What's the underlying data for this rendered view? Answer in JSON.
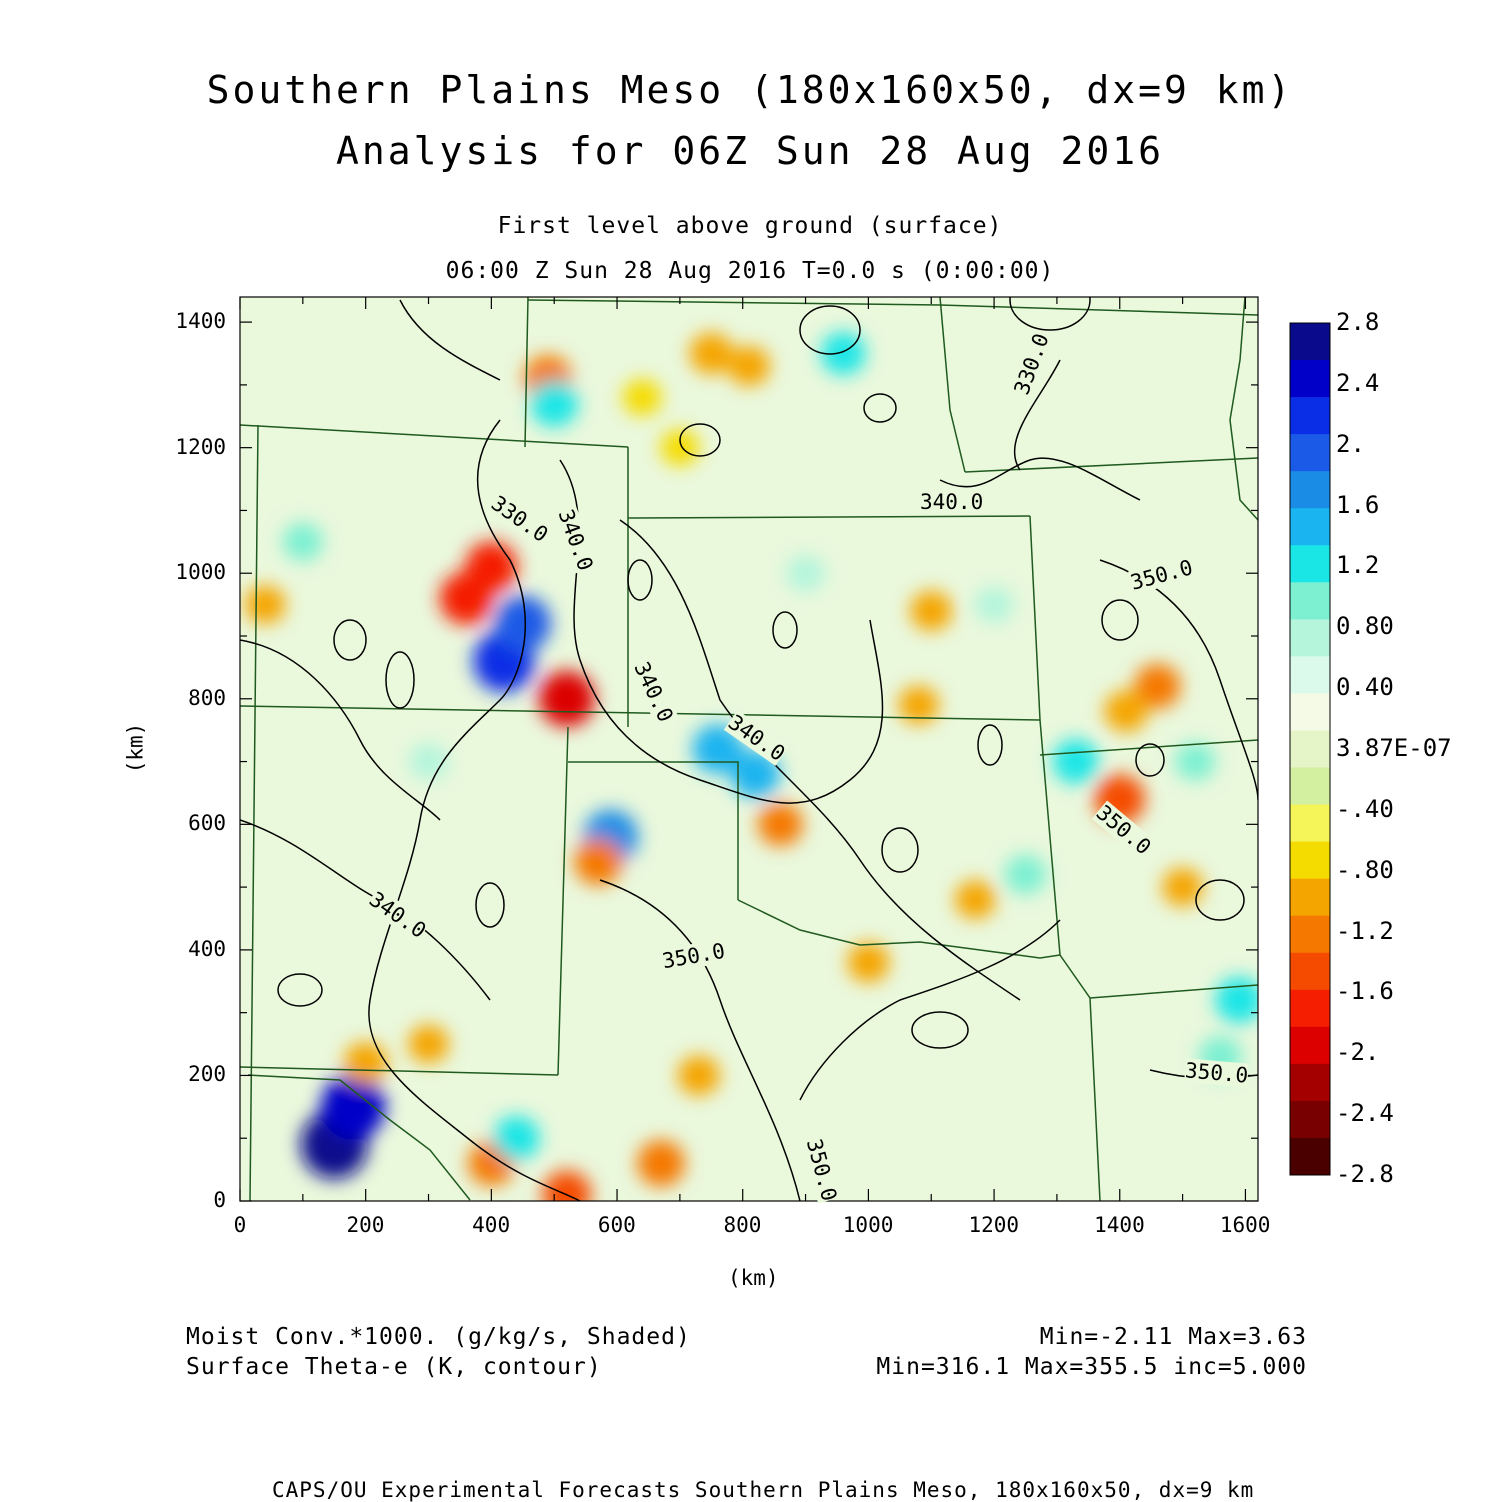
{
  "header": {
    "title_line1": "Southern Plains Meso (180x160x50, dx=9 km)",
    "title_line2": "Analysis for 06Z Sun 28 Aug 2016",
    "level": "First level above ground (surface)",
    "time": "06:00 Z Sun 28 Aug 2016    T=0.0 s (0:00:00)"
  },
  "chart_data": {
    "type": "heatmap",
    "xlabel": "(km)",
    "ylabel": "(km)",
    "xlim": [
      0,
      1620
    ],
    "ylim": [
      0,
      1440
    ],
    "x_ticks": [
      "0",
      "200",
      "400",
      "600",
      "800",
      "1000",
      "1200",
      "1400",
      "1600"
    ],
    "y_ticks": [
      "0",
      "200",
      "400",
      "600",
      "800",
      "1000",
      "1200",
      "1400"
    ],
    "colorbar": {
      "labels": [
        "2.8",
        "2.4",
        "2.",
        "1.6",
        "1.2",
        "0.80",
        "0.40",
        "3.87E-07",
        "-.40",
        "-.80",
        "-1.2",
        "-1.6",
        "-2.",
        "-2.4",
        "-2.8"
      ],
      "colors": [
        "#0a0a8c",
        "#0000c8",
        "#0a2ee6",
        "#1a5ae6",
        "#1a8ce6",
        "#1ab4f0",
        "#1ae6e6",
        "#7df0d2",
        "#b4f5dc",
        "#dcfaeb",
        "#f5fae6",
        "#e6f5c8",
        "#d2f0a0",
        "#f5f55a",
        "#f5dc00",
        "#f5a500",
        "#f57800",
        "#f54b00",
        "#f51e00",
        "#dc0000",
        "#a50000",
        "#780000",
        "#4b0000"
      ]
    },
    "contour_labels": [
      "330.0",
      "340.0",
      "350.0"
    ],
    "shaded_field": {
      "label": "Moist Conv.*1000. (g/kg/s, Shaded)",
      "stats": "Min=-2.11 Max=3.63"
    },
    "contour_field": {
      "label": "Surface Theta-e (K, contour)",
      "stats": "Min=316.1 Max=355.5 inc=5.000"
    },
    "features": [
      {
        "x": 150,
        "y": 90,
        "v": 2.8
      },
      {
        "x": 180,
        "y": 150,
        "v": 2.6
      },
      {
        "x": 420,
        "y": 860,
        "v": 2.4
      },
      {
        "x": 450,
        "y": 920,
        "v": 2.0
      },
      {
        "x": 520,
        "y": 800,
        "v": -2.0
      },
      {
        "x": 360,
        "y": 960,
        "v": -1.8
      },
      {
        "x": 400,
        "y": 1010,
        "v": -1.7
      },
      {
        "x": 590,
        "y": 580,
        "v": 1.9
      },
      {
        "x": 570,
        "y": 540,
        "v": -1.4
      },
      {
        "x": 760,
        "y": 720,
        "v": 1.6
      },
      {
        "x": 820,
        "y": 680,
        "v": 1.5
      },
      {
        "x": 860,
        "y": 600,
        "v": -1.2
      },
      {
        "x": 1400,
        "y": 640,
        "v": -1.6
      },
      {
        "x": 1460,
        "y": 820,
        "v": -1.3
      },
      {
        "x": 1410,
        "y": 780,
        "v": -1.1
      },
      {
        "x": 1330,
        "y": 700,
        "v": 1.3
      },
      {
        "x": 1590,
        "y": 320,
        "v": 1.4
      },
      {
        "x": 1560,
        "y": 230,
        "v": 1.1
      },
      {
        "x": 520,
        "y": 10,
        "v": -1.5
      },
      {
        "x": 400,
        "y": 60,
        "v": -1.3
      },
      {
        "x": 670,
        "y": 60,
        "v": -1.4
      },
      {
        "x": 730,
        "y": 200,
        "v": -1.0
      },
      {
        "x": 440,
        "y": 100,
        "v": 1.3
      },
      {
        "x": 1000,
        "y": 380,
        "v": -1.0
      },
      {
        "x": 810,
        "y": 1330,
        "v": -1.0
      },
      {
        "x": 750,
        "y": 1350,
        "v": -1.1
      },
      {
        "x": 490,
        "y": 1310,
        "v": -1.4
      },
      {
        "x": 500,
        "y": 1270,
        "v": 1.4
      },
      {
        "x": 1100,
        "y": 940,
        "v": -1.0
      },
      {
        "x": 1080,
        "y": 790,
        "v": -0.9
      },
      {
        "x": 40,
        "y": 950,
        "v": -0.9
      },
      {
        "x": 200,
        "y": 220,
        "v": -1.1
      },
      {
        "x": 300,
        "y": 250,
        "v": -0.9
      },
      {
        "x": 1170,
        "y": 480,
        "v": -0.9
      },
      {
        "x": 960,
        "y": 1350,
        "v": 1.2
      },
      {
        "x": 640,
        "y": 1280,
        "v": -0.8
      },
      {
        "x": 700,
        "y": 1200,
        "v": -0.8
      },
      {
        "x": 1250,
        "y": 520,
        "v": 1.0
      },
      {
        "x": 1500,
        "y": 500,
        "v": -0.9
      },
      {
        "x": 1200,
        "y": 950,
        "v": 0.8
      },
      {
        "x": 100,
        "y": 1050,
        "v": 0.9
      },
      {
        "x": 900,
        "y": 1000,
        "v": 0.8
      },
      {
        "x": 300,
        "y": 700,
        "v": 0.8
      },
      {
        "x": 1520,
        "y": 700,
        "v": 0.9
      }
    ]
  },
  "footer": {
    "credit": "CAPS/OU Experimental Forecasts  Southern Plains Meso, 180x160x50, dx=9 km"
  }
}
